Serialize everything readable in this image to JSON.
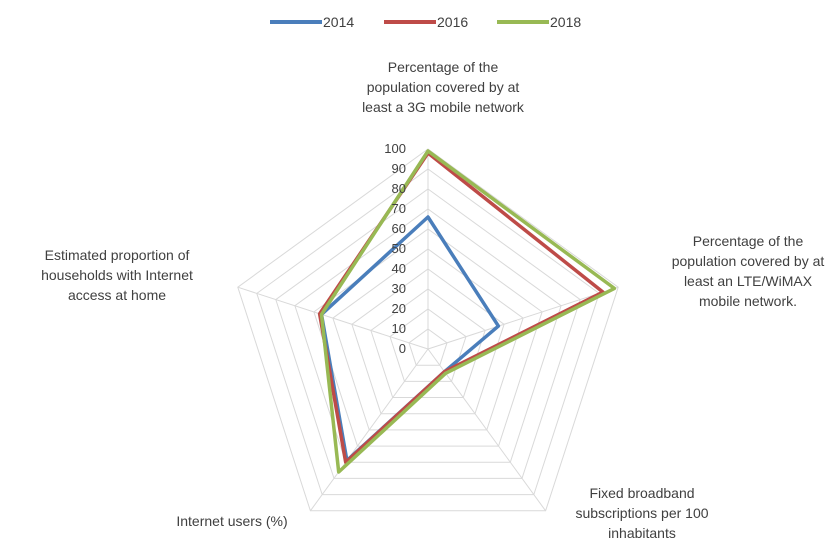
{
  "chart_data": {
    "type": "radar",
    "title": "",
    "categories": [
      "Percentage of the population covered by at least a 3G mobile network",
      "Percentage of the population covered by at least an LTE/WiMAX mobile network.",
      "Fixed broadband subscriptions per 100 inhabitants",
      "Internet users (%)",
      "Estimated proportion of households with Internet access at home"
    ],
    "category_label_lines": [
      [
        "Percentage of the",
        "population covered by at",
        "least a 3G mobile network"
      ],
      [
        "Percentage of the",
        "population covered by at",
        "least an LTE/WiMAX",
        "mobile network."
      ],
      [
        "Fixed broadband",
        "subscriptions per 100",
        "inhabitants"
      ],
      [
        "Internet users (%)"
      ],
      [
        "Estimated proportion of",
        "households with Internet",
        "access at home"
      ]
    ],
    "series": [
      {
        "name": "2014",
        "color": "#4a7ebb",
        "values": [
          66,
          37,
          14,
          69,
          56
        ]
      },
      {
        "name": "2016",
        "color": "#be4b48",
        "values": [
          98,
          92,
          14,
          70,
          57
        ]
      },
      {
        "name": "2018",
        "color": "#98b954",
        "values": [
          99,
          98,
          15,
          76,
          56
        ]
      }
    ],
    "ticks": [
      "0",
      "10",
      "20",
      "30",
      "40",
      "50",
      "60",
      "70",
      "80",
      "90",
      "100"
    ],
    "range": [
      0,
      100
    ],
    "grid": true,
    "legend_position": "top"
  }
}
